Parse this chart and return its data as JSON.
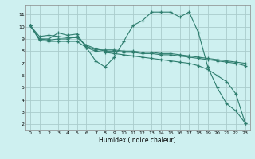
{
  "title": "",
  "xlabel": "Humidex (Indice chaleur)",
  "ylabel": "",
  "bg_color": "#cef0f0",
  "grid_color": "#aacccc",
  "line_color": "#2e7d6e",
  "xlim": [
    -0.5,
    23.5
  ],
  "ylim": [
    1.5,
    11.8
  ],
  "xticks": [
    0,
    1,
    2,
    3,
    4,
    5,
    6,
    7,
    8,
    9,
    10,
    11,
    12,
    13,
    14,
    15,
    16,
    17,
    18,
    19,
    20,
    21,
    22,
    23
  ],
  "yticks": [
    2,
    3,
    4,
    5,
    6,
    7,
    8,
    9,
    10,
    11
  ],
  "series": [
    {
      "x": [
        0,
        1,
        2,
        3,
        4,
        5,
        6,
        7,
        8,
        9,
        10,
        11,
        12,
        13,
        14,
        15,
        16,
        17,
        18,
        19,
        20,
        21,
        22,
        23
      ],
      "y": [
        10.1,
        9.0,
        9.0,
        9.5,
        9.3,
        9.4,
        8.3,
        7.2,
        6.7,
        7.5,
        8.8,
        10.1,
        10.5,
        11.2,
        11.2,
        11.2,
        10.8,
        11.2,
        9.5,
        6.7,
        5.0,
        3.7,
        3.1,
        2.1
      ]
    },
    {
      "x": [
        0,
        1,
        2,
        3,
        4,
        5,
        6,
        7,
        8,
        9,
        10,
        11,
        12,
        13,
        14,
        15,
        16,
        17,
        18,
        19,
        20,
        21,
        22,
        23
      ],
      "y": [
        10.1,
        9.2,
        9.3,
        9.2,
        9.1,
        9.1,
        8.5,
        8.2,
        8.0,
        8.0,
        7.9,
        7.9,
        7.8,
        7.8,
        7.7,
        7.7,
        7.6,
        7.5,
        7.4,
        7.3,
        7.2,
        7.1,
        7.0,
        6.8
      ]
    },
    {
      "x": [
        0,
        1,
        2,
        3,
        4,
        5,
        6,
        7,
        8,
        9,
        10,
        11,
        12,
        13,
        14,
        15,
        16,
        17,
        18,
        19,
        20,
        21,
        22,
        23
      ],
      "y": [
        10.1,
        9.0,
        8.9,
        9.0,
        9.0,
        9.2,
        8.4,
        8.1,
        8.1,
        8.1,
        8.0,
        8.0,
        7.9,
        7.9,
        7.8,
        7.8,
        7.7,
        7.6,
        7.5,
        7.4,
        7.3,
        7.2,
        7.1,
        7.0
      ]
    },
    {
      "x": [
        0,
        1,
        2,
        3,
        4,
        5,
        6,
        7,
        8,
        9,
        10,
        11,
        12,
        13,
        14,
        15,
        16,
        17,
        18,
        19,
        20,
        21,
        22,
        23
      ],
      "y": [
        10.1,
        8.9,
        8.8,
        8.8,
        8.8,
        8.8,
        8.3,
        8.0,
        7.9,
        7.8,
        7.7,
        7.6,
        7.5,
        7.4,
        7.3,
        7.2,
        7.1,
        7.0,
        6.8,
        6.5,
        6.0,
        5.5,
        4.5,
        2.1
      ]
    }
  ]
}
